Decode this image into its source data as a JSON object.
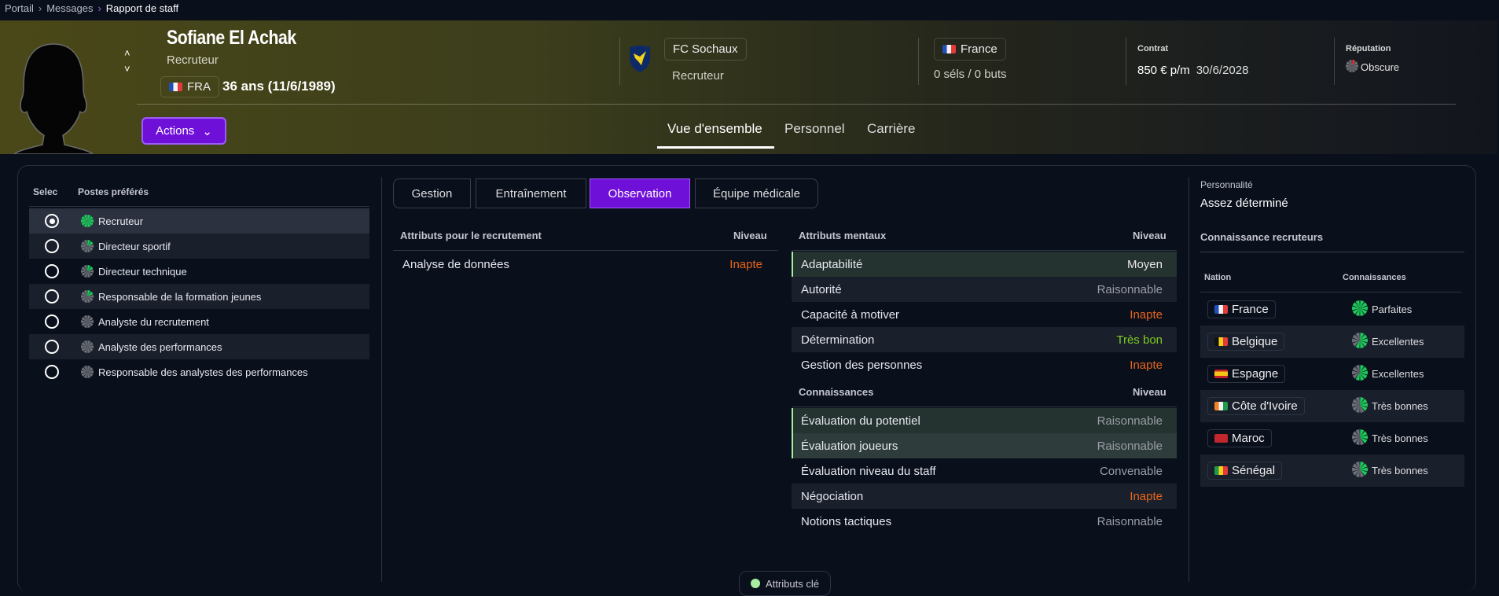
{
  "breadcrumb": [
    "Portail",
    "Messages",
    "Rapport de staff"
  ],
  "person": {
    "name": "Sofiane El Achak",
    "role": "Recruteur",
    "nationality_code": "FRA",
    "age": "36 ans (11/6/1989)"
  },
  "club": {
    "name": "FC Sochaux",
    "role": "Recruteur"
  },
  "nation": {
    "name": "France",
    "caps": "0 séls / 0 buts"
  },
  "contract": {
    "label": "Contrat",
    "wage": "850 € p/m",
    "expiry": "30/6/2028"
  },
  "reputation": {
    "label": "Réputation",
    "value": "Obscure",
    "level": 0.1
  },
  "actions_label": "Actions",
  "tabs": [
    "Vue d'ensemble",
    "Personnel",
    "Carrière"
  ],
  "active_tab": "Vue d'ensemble",
  "roles": {
    "header_select": "Selec",
    "header_roles": "Postes préférés",
    "items": [
      {
        "label": "Recruteur",
        "suitability": 1.0,
        "selected": true
      },
      {
        "label": "Directeur sportif",
        "suitability": 0.2
      },
      {
        "label": "Directeur technique",
        "suitability": 0.2
      },
      {
        "label": "Responsable de la formation jeunes",
        "suitability": 0.2
      },
      {
        "label": "Analyste du recrutement",
        "suitability": 0
      },
      {
        "label": "Analyste des performances",
        "suitability": 0
      },
      {
        "label": "Responsable des analystes des performances",
        "suitability": 0
      }
    ]
  },
  "subtabs": [
    "Gestion",
    "Entraînement",
    "Observation",
    "Équipe médicale"
  ],
  "active_subtab": "Observation",
  "recruitment": {
    "header": "Attributs pour le recrutement",
    "level_header": "Niveau",
    "rows": [
      {
        "name": "Analyse de données",
        "level": "Inapte",
        "color": "#e8661a"
      }
    ]
  },
  "mental": {
    "header": "Attributs mentaux",
    "level_header": "Niveau",
    "rows": [
      {
        "name": "Adaptabilité",
        "level": "Moyen",
        "color": "#e8e8e8",
        "key": true
      },
      {
        "name": "Autorité",
        "level": "Raisonnable",
        "color": "#9a9da6"
      },
      {
        "name": "Capacité à motiver",
        "level": "Inapte",
        "color": "#e8661a"
      },
      {
        "name": "Détermination",
        "level": "Très bon",
        "color": "#7ccc1e"
      },
      {
        "name": "Gestion des personnes",
        "level": "Inapte",
        "color": "#e8661a"
      }
    ]
  },
  "knowledge": {
    "header": "Connaissances",
    "level_header": "Niveau",
    "rows": [
      {
        "name": "Évaluation du potentiel",
        "level": "Raisonnable",
        "color": "#9a9da6",
        "key": true
      },
      {
        "name": "Évaluation joueurs",
        "level": "Raisonnable",
        "color": "#9a9da6",
        "key": true
      },
      {
        "name": "Évaluation niveau du staff",
        "level": "Convenable",
        "color": "#9a9da6"
      },
      {
        "name": "Négociation",
        "level": "Inapte",
        "color": "#e8661a"
      },
      {
        "name": "Notions tactiques",
        "level": "Raisonnable",
        "color": "#9a9da6"
      }
    ]
  },
  "personality": {
    "label": "Personnalité",
    "value": "Assez déterminé"
  },
  "scout_knowledge": {
    "title": "Connaissance recruteurs",
    "col_nation": "Nation",
    "col_knowledge": "Connaissances",
    "rows": [
      {
        "nation": "France",
        "knowledge": "Parfaites",
        "level": 1.0,
        "flag": [
          "#1f4fb8",
          "#f2f2f2",
          "#e63a3a"
        ]
      },
      {
        "nation": "Belgique",
        "knowledge": "Excellentes",
        "level": 0.6,
        "flag": [
          "#111111",
          "#f5d21a",
          "#e63a3a"
        ]
      },
      {
        "nation": "Espagne",
        "knowledge": "Excellentes",
        "level": 0.6,
        "flag": [
          "#c8202a",
          "#f5c518",
          "#c8202a"
        ],
        "horizontal": true
      },
      {
        "nation": "Côte d'Ivoire",
        "knowledge": "Très bonnes",
        "level": 0.4,
        "flag": [
          "#f58220",
          "#f2f2f2",
          "#1d9a4a"
        ]
      },
      {
        "nation": "Maroc",
        "knowledge": "Très bonnes",
        "level": 0.4,
        "flag": [
          "#c1272d",
          "#c1272d",
          "#c1272d"
        ]
      },
      {
        "nation": "Sénégal",
        "knowledge": "Très bonnes",
        "level": 0.4,
        "flag": [
          "#1d9a4a",
          "#f5d21a",
          "#e63a3a"
        ]
      }
    ]
  },
  "key_attributes_label": "Attributs clé",
  "colors": {
    "accent": "#6f10d8",
    "key": "#a8f0a0",
    "green": "#1ec85a"
  }
}
